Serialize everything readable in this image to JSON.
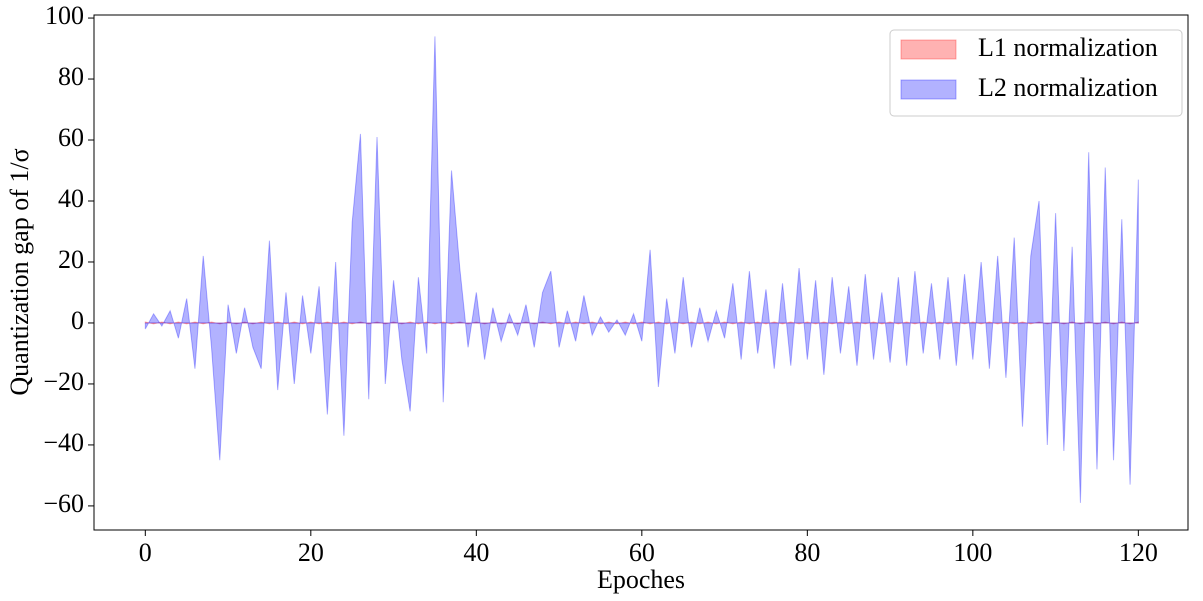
{
  "chart_data": {
    "type": "area",
    "xlabel": "Epoches",
    "ylabel": "Quantization gap of 1/σ",
    "x": [
      0,
      1,
      2,
      3,
      4,
      5,
      6,
      7,
      8,
      9,
      10,
      11,
      12,
      13,
      14,
      15,
      16,
      17,
      18,
      19,
      20,
      21,
      22,
      23,
      24,
      25,
      26,
      27,
      28,
      29,
      30,
      31,
      32,
      33,
      34,
      35,
      36,
      37,
      38,
      39,
      40,
      41,
      42,
      43,
      44,
      45,
      46,
      47,
      48,
      49,
      50,
      51,
      52,
      53,
      54,
      55,
      56,
      57,
      58,
      59,
      60,
      61,
      62,
      63,
      64,
      65,
      66,
      67,
      68,
      69,
      70,
      71,
      72,
      73,
      74,
      75,
      76,
      77,
      78,
      79,
      80,
      81,
      82,
      83,
      84,
      85,
      86,
      87,
      88,
      89,
      90,
      91,
      92,
      93,
      94,
      95,
      96,
      97,
      98,
      99,
      100,
      101,
      102,
      103,
      104,
      105,
      106,
      107,
      108,
      109,
      110,
      111,
      112,
      113,
      114,
      115,
      116,
      117,
      118,
      119,
      120
    ],
    "series": [
      {
        "name": "L1 normalization",
        "color": "#ff0000",
        "values": [
          0.3,
          -0.3,
          0.3,
          -0.3,
          0.3,
          -0.3,
          0.3,
          -0.3,
          0.3,
          -0.3,
          0.3,
          -0.3,
          0.3,
          -0.3,
          0.3,
          -0.3,
          0.3,
          -0.3,
          0.3,
          -0.3,
          0.3,
          -0.3,
          0.3,
          -0.3,
          0.3,
          -0.3,
          0.3,
          -0.3,
          0.3,
          -0.3,
          0.3,
          -0.3,
          0.3,
          -0.3,
          0.3,
          -0.3,
          0.3,
          -0.3,
          0.3,
          -0.3,
          0.3,
          -0.3,
          0.3,
          -0.3,
          0.3,
          -0.3,
          0.3,
          -0.3,
          0.3,
          -0.3,
          0.3,
          -0.3,
          0.3,
          -0.3,
          0.3,
          -0.3,
          0.3,
          -0.3,
          0.3,
          -0.3,
          0.3,
          -0.3,
          0.3,
          -0.3,
          0.3,
          -0.3,
          0.3,
          -0.3,
          0.3,
          -0.3,
          0.3,
          -0.3,
          0.3,
          -0.3,
          0.3,
          -0.3,
          0.3,
          -0.3,
          0.3,
          -0.3,
          0.3,
          -0.3,
          0.3,
          -0.3,
          0.3,
          -0.3,
          0.3,
          -0.3,
          0.3,
          -0.3,
          0.3,
          -0.3,
          0.3,
          -0.3,
          0.3,
          -0.3,
          0.3,
          -0.3,
          0.3,
          -0.3,
          0.3,
          -0.3,
          0.3,
          -0.3,
          0.3,
          -0.3,
          0.3,
          -0.3,
          0.3,
          -0.3,
          0.3,
          -0.3,
          0.3,
          -0.3,
          0.3,
          -0.3,
          0.3,
          -0.3,
          0.3,
          -0.3,
          0.3
        ]
      },
      {
        "name": "L2 normalization",
        "color": "#0000ff",
        "values": [
          -2,
          3,
          -1,
          4,
          -5,
          8,
          -15,
          22,
          -8,
          -45,
          6,
          -10,
          5,
          -8,
          -15,
          27,
          -22,
          10,
          -20,
          9,
          -10,
          12,
          -30,
          20,
          -37,
          33,
          62,
          -25,
          61,
          -20,
          14,
          -12,
          -29,
          15,
          -10,
          94,
          -26,
          50,
          18,
          -8,
          10,
          -12,
          5,
          -6,
          3,
          -4,
          6,
          -8,
          10,
          17,
          -8,
          4,
          -6,
          9,
          -4,
          2,
          -3,
          1,
          -4,
          3,
          -6,
          24,
          -21,
          8,
          -10,
          15,
          -8,
          5,
          -6,
          4,
          -5,
          13,
          -12,
          17,
          -10,
          11,
          -15,
          13,
          -14,
          18,
          -12,
          14,
          -17,
          15,
          -10,
          12,
          -14,
          16,
          -12,
          10,
          -13,
          15,
          -14,
          17,
          -10,
          13,
          -12,
          15,
          -14,
          16,
          -12,
          20,
          -15,
          22,
          -18,
          28,
          -34,
          22,
          40,
          -40,
          36,
          -42,
          25,
          -59,
          56,
          -48,
          51,
          -45,
          34,
          -53,
          47
        ]
      }
    ],
    "xlim": [
      -6.2,
      126
    ],
    "ylim": [
      -67.9,
      101
    ],
    "xticks": [
      0,
      20,
      40,
      60,
      80,
      100,
      120
    ],
    "yticks": [
      {
        "value": -60,
        "label": "−60"
      },
      {
        "value": -40,
        "label": "−40"
      },
      {
        "value": -20,
        "label": "−20"
      },
      0,
      20,
      40,
      60,
      80,
      100
    ],
    "legend": "upper right"
  }
}
